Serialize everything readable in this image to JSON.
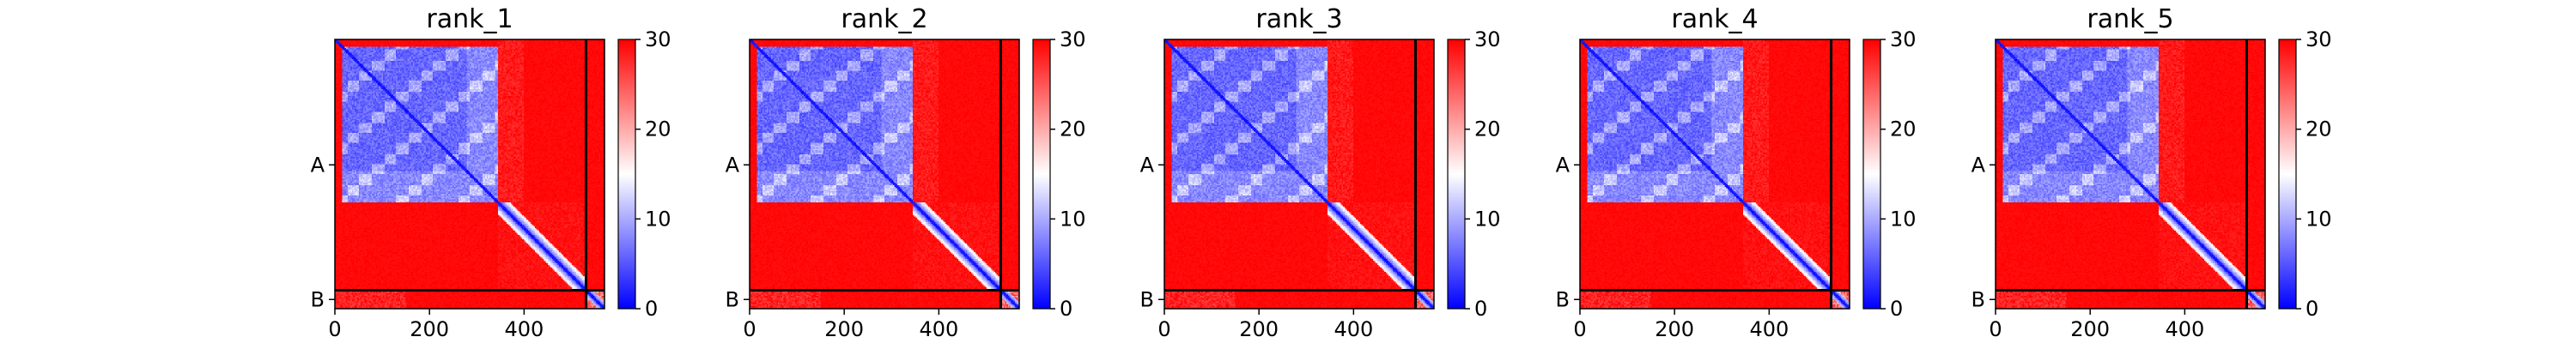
{
  "chart_data": [
    {
      "type": "heatmap",
      "title": "rank_1",
      "variant": 0
    },
    {
      "type": "heatmap",
      "title": "rank_2",
      "variant": 1
    },
    {
      "type": "heatmap",
      "title": "rank_3",
      "variant": 2
    },
    {
      "type": "heatmap",
      "title": "rank_4",
      "variant": 3
    },
    {
      "type": "heatmap",
      "title": "rank_5",
      "variant": 4
    }
  ],
  "shared": {
    "matrix_size": 570,
    "chains": [
      {
        "label": "A",
        "start": 0,
        "end": 531
      },
      {
        "label": "B",
        "start": 531,
        "end": 570
      }
    ],
    "x_ticks": [
      0,
      200,
      400
    ],
    "colorbar": {
      "min": 0,
      "max": 30,
      "ticks": [
        0,
        10,
        20,
        30
      ],
      "colormap": "bwr"
    },
    "colors": {
      "low": "#0000ff",
      "mid": "#ffffff",
      "high": "#ff0000",
      "chain_border": "#000000"
    }
  }
}
